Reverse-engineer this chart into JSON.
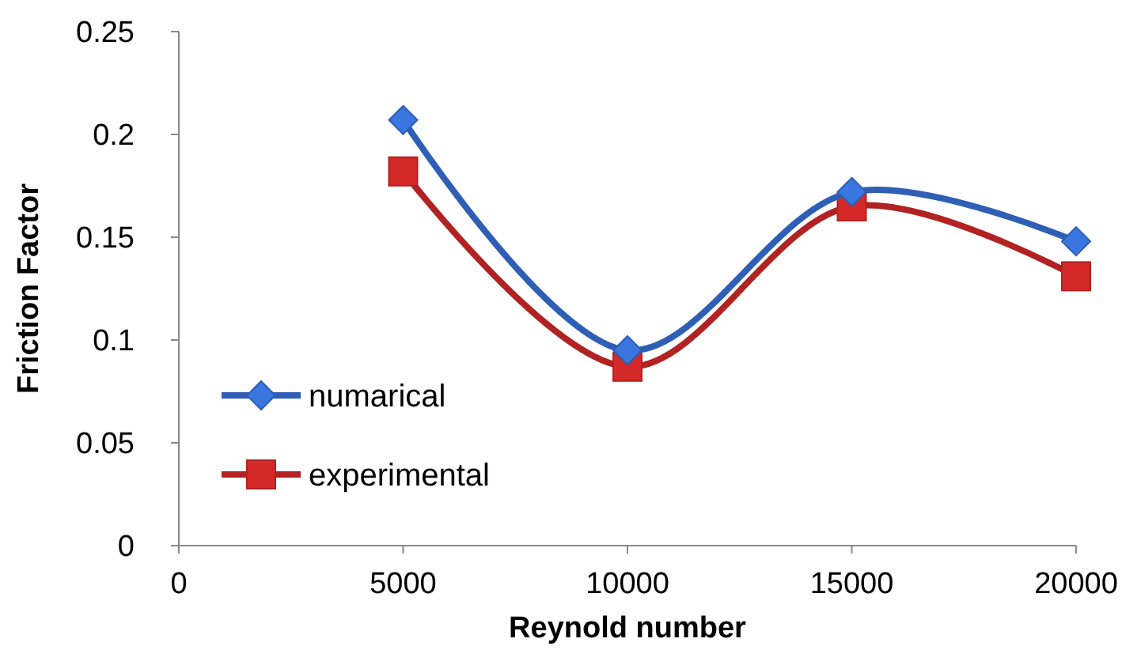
{
  "chart_data": {
    "type": "line",
    "xlabel": "Reynold number",
    "ylabel": "Friction Factor",
    "x": [
      5000,
      10000,
      15000,
      20000
    ],
    "series": [
      {
        "name": "numarical",
        "color": "#2e5fb4",
        "marker": "diamond",
        "values": [
          0.207,
          0.095,
          0.172,
          0.148
        ]
      },
      {
        "name": "experimental",
        "color": "#b22222",
        "marker": "square",
        "values": [
          0.182,
          0.087,
          0.165,
          0.131
        ]
      }
    ],
    "xlim": [
      0,
      20000
    ],
    "xticks": [
      0,
      5000,
      10000,
      15000,
      20000
    ],
    "ylim": [
      0,
      0.25
    ],
    "yticks": [
      0,
      0.05,
      0.1,
      0.15,
      0.2,
      0.25
    ],
    "grid": false,
    "legend": "left",
    "line_style": "solid"
  }
}
